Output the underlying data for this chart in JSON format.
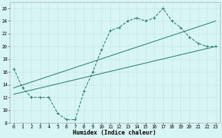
{
  "line1_x": [
    0,
    1,
    2,
    3,
    4,
    5,
    6,
    7,
    8,
    9,
    10,
    11,
    12,
    13,
    14,
    15,
    16,
    17,
    18,
    19,
    20,
    21,
    22,
    23
  ],
  "line1_y": [
    16.5,
    13.5,
    12.0,
    12.0,
    12.0,
    9.5,
    8.5,
    8.5,
    13.0,
    16.0,
    19.5,
    22.5,
    23.0,
    24.0,
    24.5,
    24.0,
    24.5,
    26.0,
    24.0,
    23.0,
    21.5,
    20.5,
    20.0,
    20.0
  ],
  "line2_x": [
    0,
    23
  ],
  "line2_y": [
    13.5,
    24.0
  ],
  "line3_x": [
    0,
    23
  ],
  "line3_y": [
    12.5,
    20.0
  ],
  "color": "#2e7d6e",
  "bg_color": "#d8f5f5",
  "grid_color": "#c8e8e8",
  "xlim": [
    -0.5,
    23.5
  ],
  "ylim": [
    8,
    27
  ],
  "yticks": [
    8,
    10,
    12,
    14,
    16,
    18,
    20,
    22,
    24,
    26
  ],
  "xticks": [
    0,
    1,
    2,
    3,
    4,
    5,
    6,
    7,
    8,
    9,
    10,
    11,
    12,
    13,
    14,
    15,
    16,
    17,
    18,
    19,
    20,
    21,
    22,
    23
  ],
  "xlabel": "Humidex (Indice chaleur)",
  "xlabel_fontsize": 6.0,
  "tick_fontsize": 4.8,
  "marker": "+"
}
